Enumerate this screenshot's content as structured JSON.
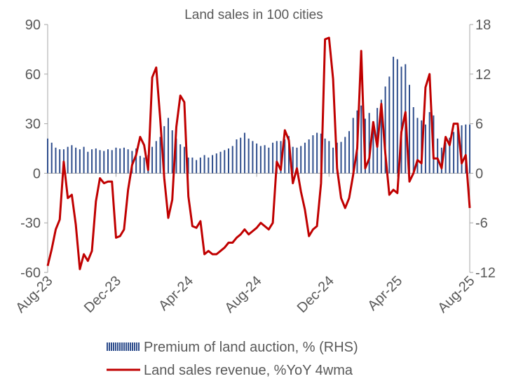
{
  "chart_data": {
    "type": "combo",
    "title": "Land sales in 100 cities",
    "categories": [
      "Aug-23",
      null,
      null,
      null,
      null,
      null,
      null,
      null,
      null,
      null,
      null,
      null,
      null,
      null,
      null,
      null,
      null,
      "Dec-23",
      null,
      null,
      null,
      null,
      null,
      null,
      null,
      null,
      null,
      null,
      null,
      null,
      null,
      null,
      null,
      null,
      null,
      "Apr-24",
      null,
      null,
      null,
      null,
      null,
      null,
      null,
      null,
      null,
      null,
      null,
      null,
      null,
      null,
      null,
      null,
      "Aug-24",
      null,
      null,
      null,
      null,
      null,
      null,
      null,
      null,
      null,
      null,
      null,
      null,
      null,
      null,
      null,
      null,
      null,
      "Dec-24",
      null,
      null,
      null,
      null,
      null,
      null,
      null,
      null,
      null,
      null,
      null,
      null,
      null,
      null,
      null,
      null,
      "Apr-25",
      null,
      null,
      null,
      null,
      null,
      null,
      null,
      null,
      null,
      null,
      null,
      null,
      null,
      null,
      null,
      null,
      null,
      "Aug-25"
    ],
    "series": [
      {
        "name": "Premium of land auction, % (RHS)",
        "type": "bar",
        "axis": "y2",
        "color": "#2e4d8c",
        "values": [
          4.2,
          3.7,
          3.1,
          2.9,
          2.9,
          3.2,
          3.4,
          3.1,
          2.9,
          3.2,
          2.6,
          2.9,
          3.0,
          2.8,
          2.7,
          2.9,
          2.8,
          3.1,
          3.0,
          3.1,
          2.9,
          2.7,
          3.0,
          2.1,
          1.9,
          2.2,
          3.2,
          3.9,
          4.4,
          5.7,
          6.7,
          5.2,
          4.2,
          3.5,
          3.2,
          1.9,
          1.9,
          1.6,
          1.9,
          2.2,
          1.9,
          2.2,
          2.4,
          2.6,
          2.8,
          3.0,
          3.3,
          4.1,
          4.3,
          4.9,
          4.2,
          3.9,
          3.6,
          3.3,
          3.4,
          3.1,
          3.7,
          3.9,
          3.9,
          4.1,
          4.5,
          3.2,
          3.1,
          3.3,
          3.7,
          4.1,
          4.6,
          4.9,
          4.8,
          4.2,
          3.9,
          3.1,
          3.7,
          3.8,
          4.4,
          5.1,
          6.7,
          7.6,
          8.2,
          6.6,
          7.3,
          6.0,
          7.9,
          8.9,
          10.5,
          11.7,
          14.1,
          13.8,
          12.9,
          13.2,
          10.7,
          8.0,
          6.7,
          6.4,
          5.9,
          7.4,
          7.0,
          4.2,
          3.1,
          3.7,
          4.3,
          5.0,
          5.8,
          5.8,
          5.9,
          5.9
        ]
      },
      {
        "name": "Land sales revenue, %YoY 4wma",
        "type": "line",
        "color": "#c00000",
        "values": [
          -56,
          -46,
          -34,
          -28,
          7,
          -15,
          -13,
          -31,
          -58,
          -49,
          -53,
          -47,
          -17,
          -3,
          -6,
          -5,
          -5,
          -39,
          -38,
          -34,
          -10,
          5,
          11,
          22,
          17,
          2,
          58,
          64,
          33,
          -3,
          -27,
          -16,
          28,
          47,
          43,
          -14,
          -32,
          -33,
          -29,
          -49,
          -47,
          -49,
          -49,
          -47,
          -45,
          -42,
          -42,
          -39,
          -37,
          -34,
          -37,
          -35,
          -33,
          -30,
          -32,
          -34,
          -30,
          7,
          2,
          26,
          20,
          -6,
          3,
          -11,
          -22,
          -38,
          -34,
          -32,
          -6,
          81,
          82,
          57,
          3,
          -15,
          -21,
          -15,
          -1,
          15,
          74,
          3,
          9,
          31,
          16,
          42,
          12,
          -13,
          -10,
          -12,
          25,
          37,
          -5,
          0,
          8,
          6,
          52,
          60,
          9,
          9,
          3,
          22,
          17,
          30,
          30,
          6,
          11,
          -21
        ]
      }
    ],
    "ylim": [
      -60,
      90
    ],
    "yticks": [
      -60,
      -30,
      0,
      30,
      60,
      90
    ],
    "y2lim": [
      -12,
      18
    ],
    "y2ticks": [
      -12,
      -6,
      0,
      6,
      12,
      18
    ]
  }
}
